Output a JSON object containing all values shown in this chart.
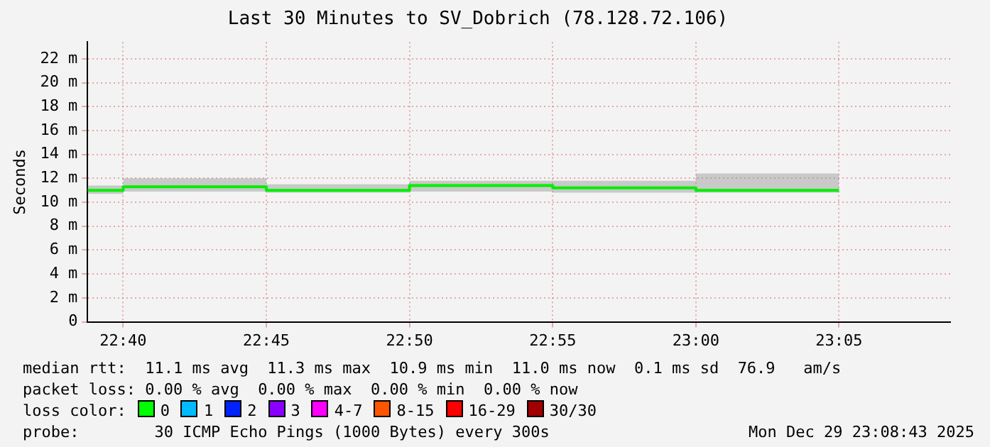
{
  "chart_data": {
    "type": "step",
    "title": "Last 30 Minutes to SV_Dobrich (78.128.72.106)",
    "ylabel": "Seconds",
    "x": [
      22.646,
      22.6667,
      22.75,
      22.8333,
      22.9167,
      23.0,
      23.0833
    ],
    "series": [
      {
        "color": "#00ee00",
        "values": [
          11.0,
          11.3,
          11.0,
          11.4,
          11.2,
          11.0,
          11.0
        ],
        "lower": [
          10.7,
          10.9,
          10.8,
          10.9,
          10.8,
          10.8,
          10.8
        ],
        "upper": [
          11.4,
          12.0,
          11.5,
          11.8,
          11.8,
          12.4,
          12.4
        ]
      }
    ],
    "xlim": [
      22.646,
      23.148
    ],
    "xticks": [
      {
        "value": 22.6667,
        "label": "22:40"
      },
      {
        "value": 22.75,
        "label": "22:45"
      },
      {
        "value": 22.8333,
        "label": "22:50"
      },
      {
        "value": 22.9167,
        "label": "22:55"
      },
      {
        "value": 23.0,
        "label": "23:00"
      },
      {
        "value": 23.0833,
        "label": "23:05"
      }
    ],
    "ylim": [
      0,
      23.4
    ],
    "yticks": [
      0,
      {
        "value": 2,
        "label": "2 m"
      },
      {
        "value": 4,
        "label": "4 m"
      },
      {
        "value": 6,
        "label": "6 m"
      },
      {
        "value": 8,
        "label": "8 m"
      },
      {
        "value": 10,
        "label": "10 m"
      },
      {
        "value": 12,
        "label": "12 m"
      },
      {
        "value": 14,
        "label": "14 m"
      },
      {
        "value": 16,
        "label": "16 m"
      },
      {
        "value": 18,
        "label": "18 m"
      },
      {
        "value": 20,
        "label": "20 m"
      },
      {
        "value": 22,
        "label": "22 m"
      }
    ],
    "grid": true,
    "legend": false,
    "annotations": [
      "median rtt:  11.1 ms avg  11.3 ms max  10.9 ms min  11.0 ms now  0.1 ms sd  76.9   am/s",
      "packet loss: 0.00 % avg  0.00 % max  0.00 % min  0.00 % now",
      "loss color:",
      "0",
      "1",
      "2",
      "3",
      "4-7",
      "8-15",
      "16-29",
      "30/30",
      "probe:        30 ICMP Echo Pings (1000 Bytes) every 300s",
      "Mon Dec 29 23:08:43 2025"
    ]
  }
}
